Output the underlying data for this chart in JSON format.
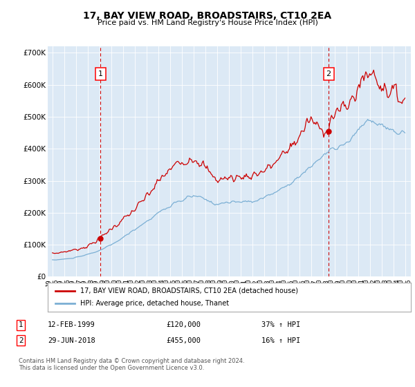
{
  "title": "17, BAY VIEW ROAD, BROADSTAIRS, CT10 2EA",
  "subtitle": "Price paid vs. HM Land Registry's House Price Index (HPI)",
  "background_color": "#dce9f5",
  "ylim": [
    0,
    720000
  ],
  "yticks": [
    0,
    100000,
    200000,
    300000,
    400000,
    500000,
    600000,
    700000
  ],
  "red_line_color": "#cc0000",
  "blue_line_color": "#7bafd4",
  "marker1_x": 1999.1,
  "marker2_x": 2018.5,
  "marker1_value": 120000,
  "marker2_value": 455000,
  "legend_red": "17, BAY VIEW ROAD, BROADSTAIRS, CT10 2EA (detached house)",
  "legend_blue": "HPI: Average price, detached house, Thanet",
  "copyright": "Contains HM Land Registry data © Crown copyright and database right 2024.\nThis data is licensed under the Open Government Licence v3.0.",
  "start_year": 1995,
  "end_year": 2025,
  "hpi_anchor_years": [
    1995,
    1996,
    1997,
    1998,
    1999,
    2000,
    2001,
    2002,
    2003,
    2004,
    2005,
    2006,
    2007,
    2008,
    2009,
    2010,
    2011,
    2012,
    2013,
    2014,
    2015,
    2016,
    2017,
    2018,
    2019,
    2020,
    2021,
    2022,
    2023,
    2024,
    2025
  ],
  "hpi_anchor_vals": [
    52000,
    55000,
    60000,
    70000,
    82000,
    100000,
    122000,
    148000,
    172000,
    200000,
    220000,
    238000,
    252000,
    242000,
    228000,
    232000,
    234000,
    236000,
    248000,
    265000,
    288000,
    312000,
    345000,
    378000,
    400000,
    415000,
    455000,
    490000,
    470000,
    455000,
    448000
  ],
  "red_anchor_years": [
    1995,
    1996,
    1997,
    1998,
    1999,
    2000,
    2001,
    2002,
    2003,
    2004,
    2005,
    2006,
    2007,
    2008,
    2009,
    2010,
    2011,
    2012,
    2013,
    2014,
    2015,
    2016,
    2017,
    2018,
    2019,
    2020,
    2021,
    2022,
    2023,
    2024,
    2025
  ],
  "red_anchor_vals": [
    72000,
    78000,
    85000,
    96000,
    120000,
    150000,
    178000,
    210000,
    250000,
    295000,
    335000,
    360000,
    372000,
    340000,
    305000,
    308000,
    312000,
    318000,
    332000,
    358000,
    396000,
    438000,
    488000,
    455000,
    510000,
    530000,
    590000,
    640000,
    600000,
    575000,
    555000
  ]
}
